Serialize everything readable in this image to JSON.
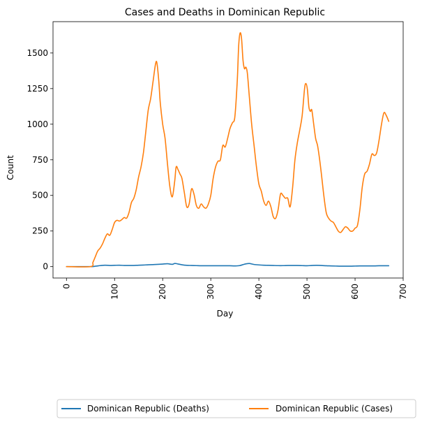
{
  "chart_data": {
    "type": "line",
    "title": "Cases and Deaths in Dominican Republic",
    "xlabel": "Day",
    "ylabel": "Count",
    "xlim": [
      -28,
      700
    ],
    "ylim": [
      -80,
      1720
    ],
    "xticks": [
      0,
      100,
      200,
      300,
      400,
      500,
      600,
      700
    ],
    "yticks": [
      0,
      250,
      500,
      750,
      1000,
      1250,
      1500
    ],
    "xtick_labels": [
      "0",
      "100",
      "200",
      "300",
      "400",
      "500",
      "600",
      "700"
    ],
    "ytick_labels": [
      "0",
      "250",
      "500",
      "750",
      "1000",
      "1250",
      "1500"
    ],
    "grid": false,
    "legend_position": "bottom-center, outside plot",
    "series": [
      {
        "name": "Dominican Republic (Deaths)",
        "color": "#1f77b4",
        "x": [
          0,
          50,
          60,
          70,
          80,
          90,
          100,
          110,
          120,
          130,
          140,
          150,
          160,
          170,
          180,
          190,
          200,
          210,
          220,
          225,
          230,
          240,
          250,
          260,
          270,
          280,
          290,
          300,
          310,
          320,
          330,
          340,
          350,
          360,
          370,
          380,
          390,
          400,
          410,
          420,
          430,
          440,
          450,
          460,
          470,
          480,
          490,
          500,
          510,
          520,
          530,
          540,
          550,
          560,
          570,
          580,
          590,
          600,
          610,
          620,
          630,
          640,
          650,
          660,
          670
        ],
        "y": [
          0,
          0,
          3,
          7,
          10,
          8,
          9,
          10,
          8,
          8,
          8,
          10,
          11,
          13,
          14,
          16,
          18,
          20,
          16,
          22,
          20,
          13,
          9,
          8,
          7,
          6,
          6,
          6,
          6,
          6,
          6,
          6,
          5,
          7,
          17,
          22,
          15,
          12,
          10,
          9,
          8,
          7,
          7,
          8,
          8,
          8,
          7,
          6,
          8,
          9,
          8,
          6,
          5,
          4,
          3,
          3,
          3,
          4,
          5,
          5,
          5,
          5,
          6,
          6,
          6
        ]
      },
      {
        "name": "Dominican Republic (Cases)",
        "color": "#ff7f0e",
        "x": [
          0,
          50,
          55,
          60,
          65,
          70,
          75,
          80,
          85,
          90,
          95,
          100,
          105,
          110,
          115,
          120,
          125,
          130,
          135,
          140,
          145,
          150,
          155,
          160,
          165,
          170,
          175,
          180,
          185,
          188,
          192,
          195,
          200,
          205,
          210,
          215,
          220,
          225,
          228,
          232,
          236,
          240,
          245,
          250,
          255,
          260,
          265,
          270,
          275,
          280,
          285,
          290,
          295,
          300,
          305,
          310,
          315,
          320,
          325,
          330,
          335,
          340,
          345,
          350,
          355,
          358,
          361,
          364,
          367,
          370,
          373,
          376,
          380,
          385,
          390,
          395,
          400,
          405,
          410,
          415,
          420,
          425,
          430,
          435,
          440,
          445,
          450,
          455,
          460,
          465,
          470,
          475,
          480,
          485,
          490,
          495,
          498,
          501,
          504,
          507,
          510,
          514,
          518,
          522,
          526,
          530,
          535,
          540,
          545,
          550,
          555,
          560,
          565,
          570,
          575,
          580,
          585,
          590,
          595,
          600,
          605,
          610,
          615,
          620,
          625,
          630,
          635,
          640,
          645,
          650,
          655,
          660,
          665,
          670
        ],
        "y": [
          0,
          0,
          30,
          70,
          110,
          130,
          160,
          200,
          230,
          220,
          260,
          310,
          325,
          320,
          330,
          345,
          340,
          380,
          450,
          480,
          540,
          630,
          700,
          800,
          950,
          1100,
          1180,
          1300,
          1420,
          1430,
          1300,
          1150,
          1000,
          900,
          720,
          560,
          490,
          600,
          700,
          680,
          650,
          620,
          520,
          420,
          440,
          545,
          510,
          430,
          410,
          440,
          420,
          410,
          440,
          500,
          620,
          700,
          740,
          750,
          850,
          840,
          900,
          970,
          1010,
          1050,
          1300,
          1550,
          1640,
          1600,
          1450,
          1390,
          1400,
          1360,
          1200,
          1000,
          850,
          700,
          580,
          530,
          460,
          430,
          460,
          420,
          350,
          340,
          400,
          510,
          500,
          480,
          480,
          420,
          550,
          750,
          870,
          960,
          1060,
          1250,
          1285,
          1240,
          1120,
          1090,
          1100,
          1000,
          900,
          850,
          760,
          650,
          500,
          380,
          340,
          320,
          310,
          280,
          250,
          240,
          260,
          280,
          270,
          250,
          250,
          270,
          290,
          400,
          560,
          650,
          670,
          720,
          790,
          780,
          800,
          890,
          1000,
          1080,
          1060,
          1020
        ]
      }
    ]
  }
}
